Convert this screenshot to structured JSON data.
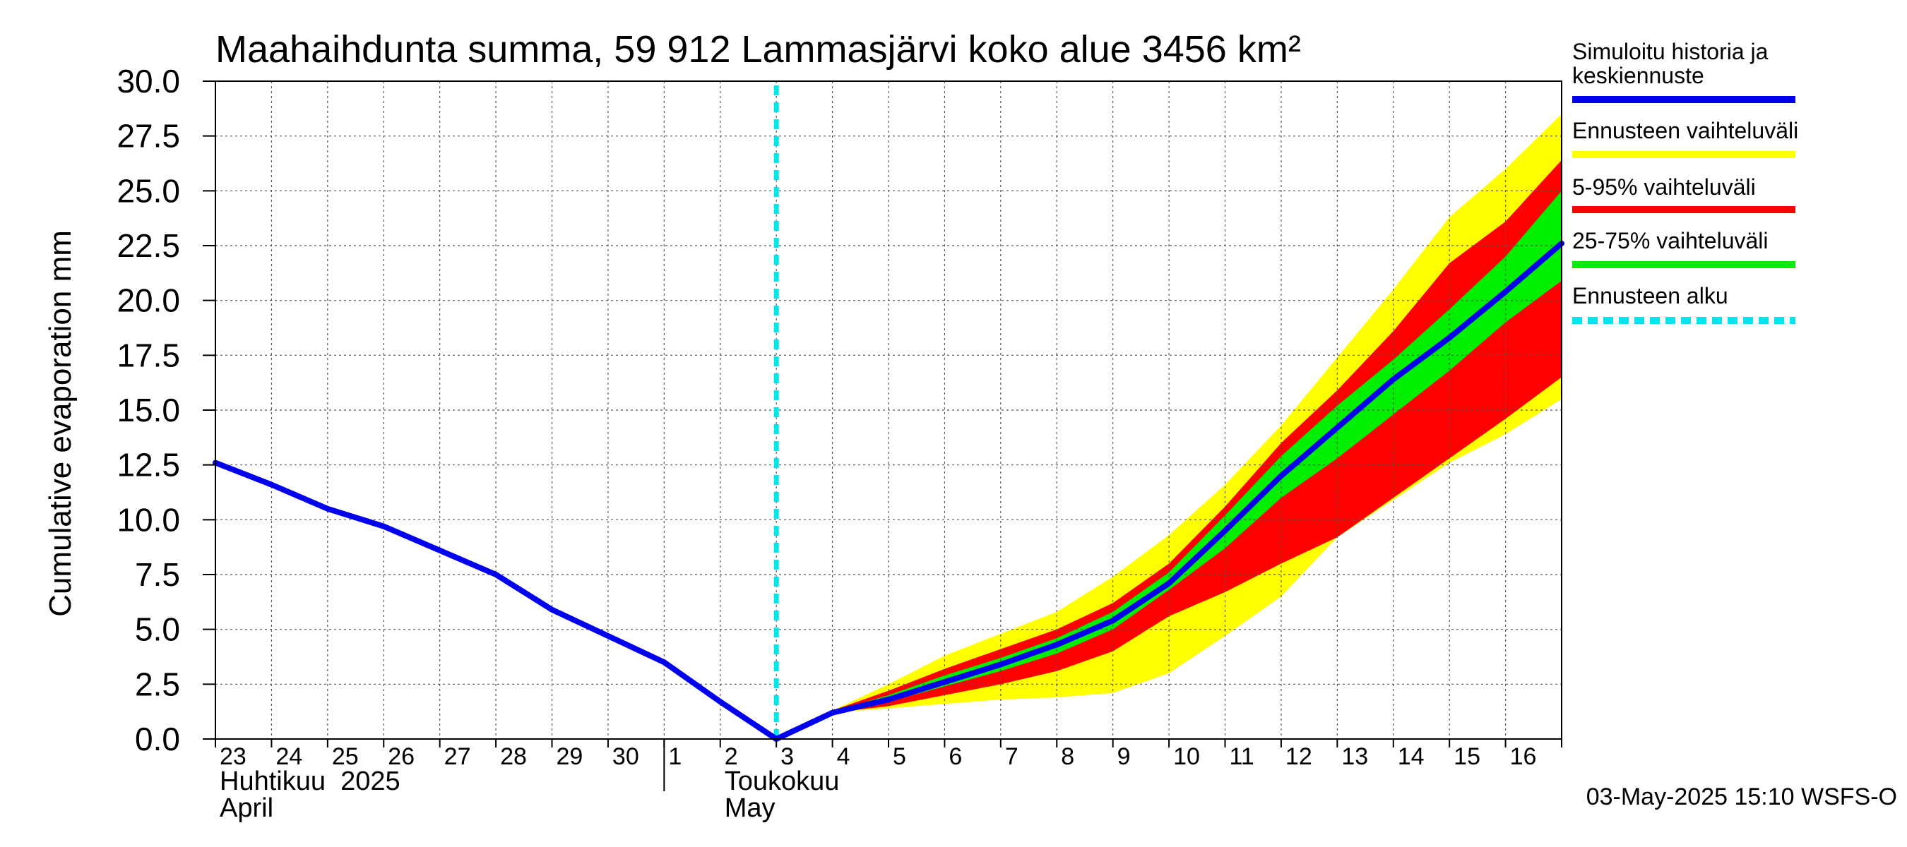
{
  "chart_data": {
    "type": "area",
    "title": "Maahaihdunta summa, 59 912 Lammasjärvi koko alue 3456 km²",
    "ylabel": "Cumulative evaporation   mm",
    "xlabel": "",
    "ylim": [
      0,
      30
    ],
    "xlim": [
      0,
      24
    ],
    "grid": true,
    "y_ticks": [
      0,
      2.5,
      5,
      7.5,
      10,
      12.5,
      15,
      17.5,
      20,
      22.5,
      25,
      27.5,
      30
    ],
    "y_tick_labels": [
      "0.0",
      "2.5",
      "5.0",
      "7.5",
      "10.0",
      "12.5",
      "15.0",
      "17.5",
      "20.0",
      "22.5",
      "25.0",
      "27.5",
      "30.0"
    ],
    "x_day_labels": [
      {
        "x": 0,
        "label": "23"
      },
      {
        "x": 1,
        "label": "24"
      },
      {
        "x": 2,
        "label": "25"
      },
      {
        "x": 3,
        "label": "26"
      },
      {
        "x": 4,
        "label": "27"
      },
      {
        "x": 5,
        "label": "28"
      },
      {
        "x": 6,
        "label": "29"
      },
      {
        "x": 7,
        "label": "30"
      },
      {
        "x": 8,
        "label": "1"
      },
      {
        "x": 9,
        "label": "2"
      },
      {
        "x": 10,
        "label": "3"
      },
      {
        "x": 11,
        "label": "4"
      },
      {
        "x": 12,
        "label": "5"
      },
      {
        "x": 13,
        "label": "6"
      },
      {
        "x": 14,
        "label": "7"
      },
      {
        "x": 15,
        "label": "8"
      },
      {
        "x": 16,
        "label": "9"
      },
      {
        "x": 17,
        "label": "10"
      },
      {
        "x": 18,
        "label": "11"
      },
      {
        "x": 19,
        "label": "12"
      },
      {
        "x": 20,
        "label": "13"
      },
      {
        "x": 21,
        "label": "14"
      },
      {
        "x": 22,
        "label": "15"
      },
      {
        "x": 23,
        "label": "16"
      }
    ],
    "month_labels": [
      {
        "x": 0,
        "line1": "Huhtikuu  2025",
        "line2": "April"
      },
      {
        "x": 9,
        "line1": "Toukokuu",
        "line2": "May"
      }
    ],
    "month_divider_x": 8,
    "forecast_start_x": 10,
    "history": {
      "name": "Simuloitu historia ja keskiennuste",
      "color": "#0000ee",
      "x": [
        0,
        1,
        2,
        3,
        4,
        5,
        6,
        7,
        8,
        9,
        10
      ],
      "y": [
        12.6,
        11.6,
        10.5,
        9.7,
        8.6,
        7.5,
        5.9,
        4.7,
        3.5,
        1.7,
        0.0
      ]
    },
    "median": {
      "name": "Simuloitu historia ja keskiennuste",
      "color": "#0000ee",
      "x": [
        10,
        11,
        12,
        13,
        14,
        15,
        16,
        17,
        18,
        19,
        20,
        21,
        22,
        23,
        24
      ],
      "y": [
        0.0,
        1.2,
        1.8,
        2.6,
        3.4,
        4.3,
        5.4,
        7.1,
        9.5,
        12.0,
        14.2,
        16.4,
        18.3,
        20.4,
        22.6
      ]
    },
    "bands": [
      {
        "name": "Ennusteen vaihteluväli",
        "color": "#ffff00",
        "x": [
          10,
          11,
          12,
          13,
          14,
          15,
          16,
          17,
          18,
          19,
          20,
          21,
          22,
          23,
          24
        ],
        "upper": [
          0.0,
          1.3,
          2.5,
          3.8,
          4.8,
          5.8,
          7.4,
          9.3,
          11.6,
          14.3,
          17.4,
          20.5,
          23.8,
          26.0,
          28.5
        ],
        "lower": [
          0.0,
          1.2,
          1.4,
          1.6,
          1.8,
          1.9,
          2.1,
          3.0,
          4.7,
          6.5,
          9.2,
          10.9,
          12.6,
          13.9,
          15.5
        ]
      },
      {
        "name": "5-95% vaihteluväli",
        "color": "#ff0000",
        "x": [
          10,
          11,
          12,
          13,
          14,
          15,
          16,
          17,
          18,
          19,
          20,
          21,
          22,
          23,
          24
        ],
        "upper": [
          0.0,
          1.3,
          2.2,
          3.2,
          4.1,
          5.0,
          6.2,
          8.0,
          10.6,
          13.5,
          15.9,
          18.6,
          21.7,
          23.6,
          26.4
        ],
        "lower": [
          0.0,
          1.2,
          1.5,
          2.0,
          2.5,
          3.1,
          4.0,
          5.6,
          6.7,
          8.0,
          9.2,
          11.0,
          12.8,
          14.6,
          16.5
        ]
      },
      {
        "name": "25-75% vaihteluväli",
        "color": "#00ee00",
        "x": [
          10,
          11,
          12,
          13,
          14,
          15,
          16,
          17,
          18,
          19,
          20,
          21,
          22,
          23,
          24
        ],
        "upper": [
          0.0,
          1.25,
          2.0,
          2.9,
          3.7,
          4.6,
          5.8,
          7.6,
          10.2,
          12.9,
          15.2,
          17.3,
          19.6,
          22.0,
          25.0
        ],
        "lower": [
          0.0,
          1.15,
          1.7,
          2.4,
          3.1,
          3.9,
          5.0,
          6.8,
          8.7,
          11.0,
          12.8,
          14.8,
          16.8,
          19.0,
          20.9
        ]
      }
    ],
    "legend": [
      {
        "label": "Simuloitu historia ja keskiennuste",
        "line1": "Simuloitu historia ja",
        "line2": "keskiennuste",
        "color": "#0000ee",
        "style": "solid"
      },
      {
        "label": "Ennusteen vaihteluväli",
        "color": "#ffff00",
        "style": "solid"
      },
      {
        "label": "5-95% vaihteluväli",
        "color": "#ff0000",
        "style": "solid"
      },
      {
        "label": "25-75% vaihteluväli",
        "color": "#00ee00",
        "style": "solid"
      },
      {
        "label": "Ennusteen alku",
        "color": "#00e5ee",
        "style": "dashed"
      }
    ],
    "legend_position": "right",
    "forecast_line_color": "#00e5ee",
    "footer": "03-May-2025 15:10 WSFS-O"
  }
}
